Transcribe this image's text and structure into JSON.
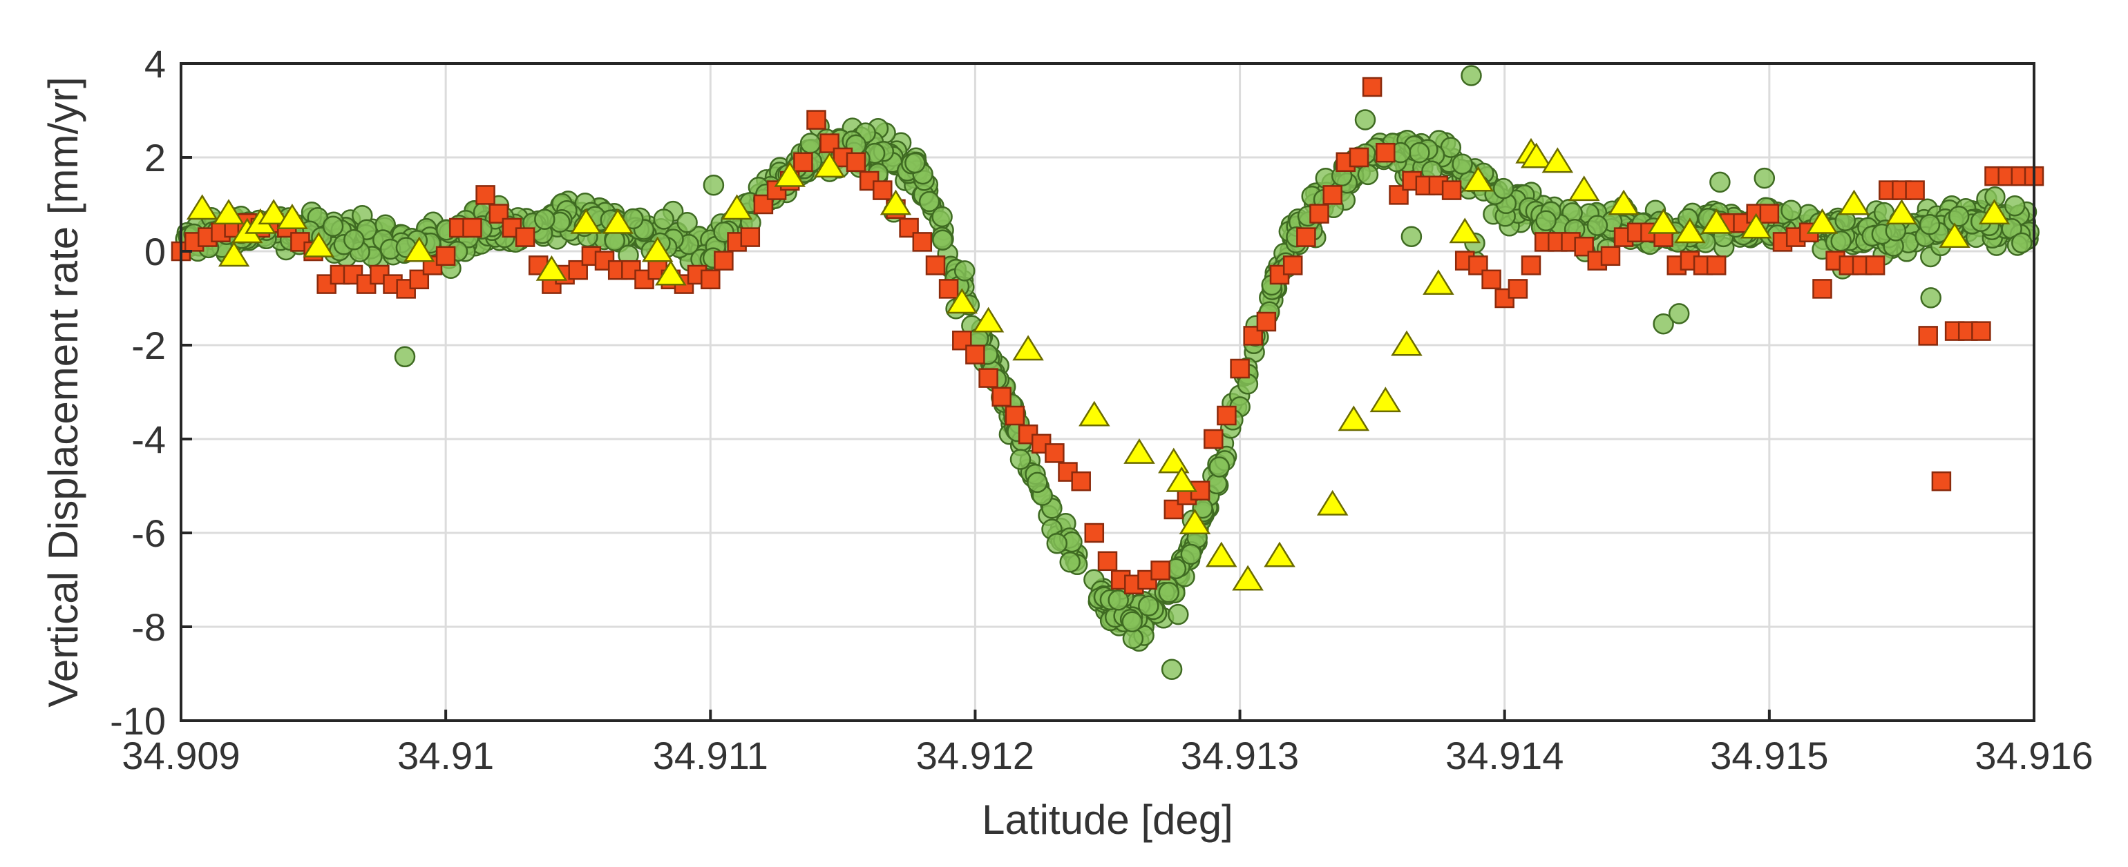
{
  "chart_data": {
    "type": "scatter",
    "title": "",
    "xlabel": "Latitude [deg]",
    "ylabel": "Vertical Displacement rate [mm/yr]",
    "xlim": [
      34.909,
      34.916
    ],
    "ylim": [
      -10,
      4
    ],
    "grid": true,
    "legend": "none",
    "x_ticks": [
      34.909,
      34.91,
      34.911,
      34.912,
      34.913,
      34.914,
      34.915,
      34.916
    ],
    "x_tick_labels": [
      "34.909",
      "34.91",
      "34.911",
      "34.912",
      "34.913",
      "34.914",
      "34.915",
      "34.916"
    ],
    "y_ticks": [
      -10,
      -8,
      -6,
      -4,
      -2,
      0,
      2,
      4
    ],
    "y_tick_labels": [
      "-10",
      "-8",
      "-6",
      "-4",
      "-2",
      "0",
      "2",
      "4"
    ],
    "colors": {
      "circles_fill": "#86c25a",
      "circles_stroke": "#3f6b22",
      "squares_fill": "#f04e1c",
      "squares_stroke": "#8a2a0c",
      "triangles_fill": "#ffff00",
      "triangles_stroke": "#6b6b00"
    },
    "series": [
      {
        "name": "green circles",
        "marker": "circle",
        "count": 1300,
        "profile": {
          "x": [
            34.909,
            34.9093,
            34.9096,
            34.9099,
            34.9102,
            34.9105,
            34.9108,
            34.911,
            34.9112,
            34.9114,
            34.9116,
            34.9118,
            34.9119,
            34.912,
            34.9121,
            34.9122,
            34.9123,
            34.9124,
            34.9125,
            34.9126,
            34.9127,
            34.9128,
            34.9129,
            34.913,
            34.9131,
            34.9132,
            34.9134,
            34.9136,
            34.9138,
            34.914,
            34.9142,
            34.9145,
            34.9148,
            34.915,
            34.9152,
            34.9155,
            34.9158,
            34.916
          ],
          "y": [
            0.3,
            0.5,
            0.3,
            0.2,
            0.5,
            0.7,
            0.3,
            0.0,
            1.2,
            2.1,
            2.2,
            1.6,
            0.0,
            -1.5,
            -3.0,
            -4.5,
            -5.8,
            -6.8,
            -7.6,
            -7.9,
            -7.6,
            -6.5,
            -5.0,
            -3.0,
            -1.3,
            0.3,
            1.6,
            2.2,
            1.9,
            1.0,
            0.6,
            0.5,
            0.5,
            0.6,
            0.4,
            0.4,
            0.6,
            0.5
          ]
        },
        "spread": 0.45
      },
      {
        "name": "orange squares",
        "marker": "square",
        "x": [
          34.909,
          34.90905,
          34.9091,
          34.90915,
          34.9092,
          34.90925,
          34.9093,
          34.90935,
          34.9094,
          34.90945,
          34.9095,
          34.90955,
          34.9096,
          34.90965,
          34.9097,
          34.90975,
          34.9098,
          34.90985,
          34.9099,
          34.90995,
          34.91,
          34.91005,
          34.9101,
          34.91015,
          34.9102,
          34.91025,
          34.9103,
          34.91035,
          34.9104,
          34.91045,
          34.9105,
          34.91055,
          34.9106,
          34.91065,
          34.9107,
          34.91075,
          34.9108,
          34.91085,
          34.9109,
          34.91095,
          34.911,
          34.91105,
          34.9111,
          34.91115,
          34.9112,
          34.91125,
          34.9113,
          34.91135,
          34.9114,
          34.91145,
          34.9115,
          34.91155,
          34.9116,
          34.91165,
          34.9117,
          34.91175,
          34.9118,
          34.91185,
          34.9119,
          34.91195,
          34.912,
          34.91205,
          34.9121,
          34.91215,
          34.9122,
          34.91225,
          34.9123,
          34.91235,
          34.9124,
          34.91245,
          34.9125,
          34.91255,
          34.9126,
          34.91265,
          34.9127,
          34.91275,
          34.9128,
          34.91285,
          34.9129,
          34.91295,
          34.913,
          34.91305,
          34.9131,
          34.91315,
          34.9132,
          34.91325,
          34.9133,
          34.91335,
          34.9134,
          34.91345,
          34.9135,
          34.91355,
          34.9136,
          34.91365,
          34.9137,
          34.91375,
          34.9138,
          34.91385,
          34.9139,
          34.91395,
          34.914,
          34.91405,
          34.9141,
          34.91415,
          34.9142,
          34.91425,
          34.9143,
          34.91435,
          34.9144,
          34.91445,
          34.9145,
          34.91455,
          34.9146,
          34.91465,
          34.9147,
          34.91475,
          34.9148,
          34.91485,
          34.9149,
          34.91495,
          34.915,
          34.91505,
          34.9151,
          34.91515,
          34.9152,
          34.91525,
          34.9153,
          34.91535,
          34.9154,
          34.91545,
          34.9155,
          34.91555,
          34.9156,
          34.91565,
          34.9157,
          34.91575,
          34.9158,
          34.91585,
          34.9159,
          34.91595,
          34.916
        ],
        "y": [
          0.0,
          0.2,
          0.3,
          0.4,
          0.5,
          0.6,
          0.5,
          0.6,
          0.5,
          0.2,
          0.0,
          -0.7,
          -0.5,
          -0.5,
          -0.7,
          -0.5,
          -0.7,
          -0.8,
          -0.6,
          -0.3,
          -0.1,
          0.5,
          0.5,
          1.2,
          0.8,
          0.5,
          0.3,
          -0.3,
          -0.7,
          -0.5,
          -0.4,
          -0.1,
          -0.2,
          -0.4,
          -0.4,
          -0.6,
          -0.4,
          -0.6,
          -0.7,
          -0.5,
          -0.6,
          -0.2,
          0.2,
          0.3,
          1.0,
          1.3,
          1.5,
          1.9,
          2.8,
          2.3,
          2.0,
          1.9,
          1.5,
          1.3,
          0.9,
          0.5,
          0.2,
          -0.3,
          -0.8,
          -1.9,
          -2.2,
          -2.7,
          -3.1,
          -3.5,
          -3.9,
          -4.1,
          -4.3,
          -4.7,
          -4.9,
          -6.0,
          -6.6,
          -7.0,
          -7.1,
          -7.0,
          -6.8,
          -5.5,
          -5.2,
          -5.1,
          -4.0,
          -3.5,
          -2.5,
          -1.8,
          -1.5,
          -0.5,
          -0.3,
          0.3,
          0.8,
          1.2,
          1.9,
          2.0,
          3.5,
          2.1,
          1.2,
          1.5,
          1.4,
          1.4,
          1.3,
          -0.2,
          -0.3,
          -0.6,
          -1.0,
          -0.8,
          -0.3,
          0.2,
          0.2,
          0.2,
          0.1,
          -0.2,
          -0.1,
          0.3,
          0.4,
          0.4,
          0.3,
          -0.3,
          -0.2,
          -0.3,
          -0.3,
          0.6,
          0.6,
          0.8,
          0.8,
          0.2,
          0.3,
          0.4,
          -0.8,
          -0.2,
          -0.3,
          -0.3,
          -0.3,
          1.3,
          1.3,
          1.3,
          -1.8,
          -4.9,
          -1.7,
          -1.7,
          -1.7,
          1.6,
          1.6,
          1.6,
          1.6
        ]
      },
      {
        "name": "yellow triangles",
        "marker": "triangle",
        "x": [
          34.90908,
          34.90918,
          34.90925,
          34.9093,
          34.90935,
          34.90942,
          34.90952,
          34.9099,
          34.9104,
          34.91053,
          34.91065,
          34.9108,
          34.91085,
          34.9092,
          34.9111,
          34.9113,
          34.91145,
          34.9117,
          34.91195,
          34.91205,
          34.9122,
          34.91245,
          34.91262,
          34.91275,
          34.91278,
          34.91283,
          34.91293,
          34.91303,
          34.91315,
          34.91335,
          34.91343,
          34.91355,
          34.91363,
          34.91375,
          34.91385,
          34.9139,
          34.9141,
          34.91412,
          34.9142,
          34.9143,
          34.91445,
          34.9146,
          34.9147,
          34.9148,
          34.91495,
          34.9152,
          34.91532,
          34.9155,
          34.9157,
          34.91585
        ],
        "y": [
          0.9,
          0.8,
          0.4,
          0.6,
          0.8,
          0.7,
          0.1,
          0.0,
          -0.4,
          0.6,
          0.6,
          0.0,
          -0.5,
          -0.1,
          0.9,
          1.6,
          1.8,
          1.0,
          -1.1,
          -1.5,
          -2.1,
          -3.5,
          -4.3,
          -4.5,
          -4.9,
          -5.8,
          -6.5,
          -7.0,
          -6.5,
          -5.4,
          -3.6,
          -3.2,
          -2.0,
          -0.7,
          0.4,
          1.5,
          2.1,
          2.0,
          1.9,
          1.3,
          1.0,
          0.6,
          0.4,
          0.6,
          0.5,
          0.6,
          1.0,
          0.8,
          0.3,
          0.8
        ]
      }
    ]
  }
}
